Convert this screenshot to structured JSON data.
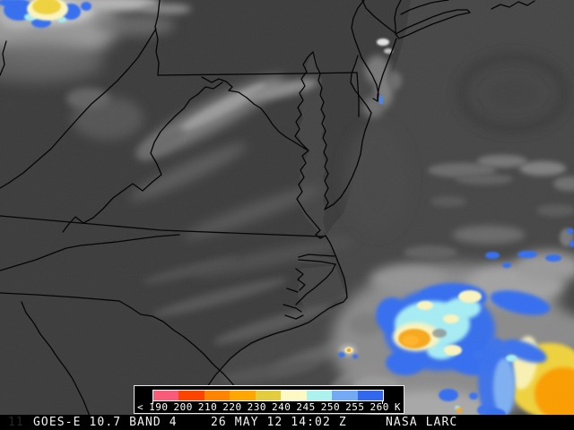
{
  "status_bar": {
    "instrument": "GOES-E 10.7 BAND 4",
    "datetime": "26 MAY 12 14:02 Z",
    "credit": "NASA LARC",
    "frame_marker": "11"
  },
  "colorbar": {
    "labels": [
      "<",
      "190",
      "200",
      "210",
      "220",
      "230",
      "240",
      "245",
      "250",
      "255",
      "260",
      "K"
    ],
    "unit": "K",
    "segment_colors": [
      "#f85c78",
      "#fe4500",
      "#ff8500",
      "#ffa600",
      "#e2cd3e",
      "#fdf9c4",
      "#aef2ee",
      "#74aaf4",
      "#3168ee"
    ],
    "background_color": "#000000",
    "border_color": "#ffffff",
    "text_color": "#ffffff"
  }
}
